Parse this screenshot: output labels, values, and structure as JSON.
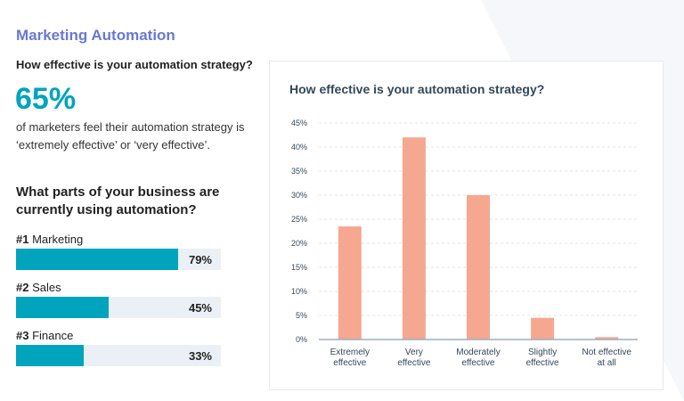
{
  "header": {
    "title": "Marketing Automation",
    "question": "How effective is your automation strategy?"
  },
  "stat": {
    "value": "65%",
    "description": "of marketers feel their automation strategy is ‘extremely effective’ or ‘very effective’."
  },
  "usage": {
    "question": "What parts of your business are currently using automation?",
    "items": [
      {
        "rank": "#1",
        "label": "Marketing",
        "value": 79,
        "display": "79%"
      },
      {
        "rank": "#2",
        "label": "Sales",
        "value": 45,
        "display": "45%"
      },
      {
        "rank": "#3",
        "label": "Finance",
        "value": 33,
        "display": "33%"
      }
    ],
    "fill_color": "#00a4bd",
    "track_color": "#eaf0f6"
  },
  "chart_data": {
    "type": "bar",
    "title": "How effective is your automation strategy?",
    "categories": [
      [
        "Extremely",
        "effective"
      ],
      [
        "Very",
        "effective"
      ],
      [
        "Moderately",
        "effective"
      ],
      [
        "Slightly",
        "effective"
      ],
      [
        "Not effective",
        "at all"
      ]
    ],
    "values": [
      23.5,
      42,
      30,
      4.5,
      0.5
    ],
    "ylim": [
      0,
      45
    ],
    "yticks": [
      "0%",
      "5%",
      "10%",
      "15%",
      "20%",
      "25%",
      "30%",
      "35%",
      "40%",
      "45%"
    ],
    "grid": true,
    "bar_color": "#f5a78f"
  }
}
